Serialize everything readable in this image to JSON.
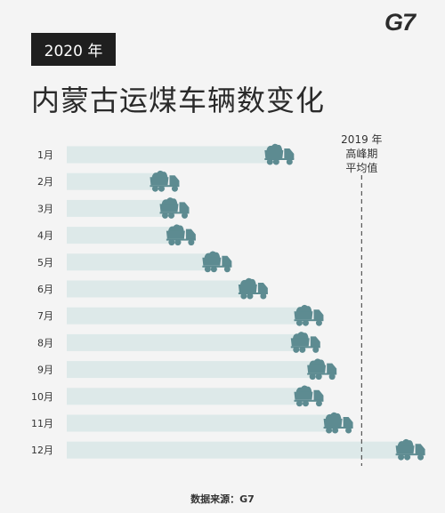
{
  "header": {
    "logo_text": "G7",
    "year_badge": "2020 年",
    "title": "内蒙古运煤车辆数变化"
  },
  "footer": {
    "source": "数据来源：G7"
  },
  "colors": {
    "bar": "#dde9e9",
    "truck": "#5d8b91",
    "reference_line": "#555555",
    "label": "#333333"
  },
  "chart_data": {
    "type": "bar",
    "orientation": "horizontal",
    "categories": [
      "1月",
      "2月",
      "3月",
      "4月",
      "5月",
      "6月",
      "7月",
      "8月",
      "9月",
      "10月",
      "11月",
      "12月"
    ],
    "values": [
      0.65,
      0.3,
      0.33,
      0.35,
      0.46,
      0.57,
      0.74,
      0.73,
      0.78,
      0.74,
      0.83,
      1.05
    ],
    "value_unit": "相对于2019年高峰期平均值的比例（估计）",
    "xlim": [
      0,
      1.1
    ],
    "reference_line": {
      "value": 0.9,
      "label_lines": [
        "2019 年",
        "高峰期",
        "平均值"
      ]
    },
    "marker": "truck-icon",
    "grid": false,
    "legend": "none"
  }
}
